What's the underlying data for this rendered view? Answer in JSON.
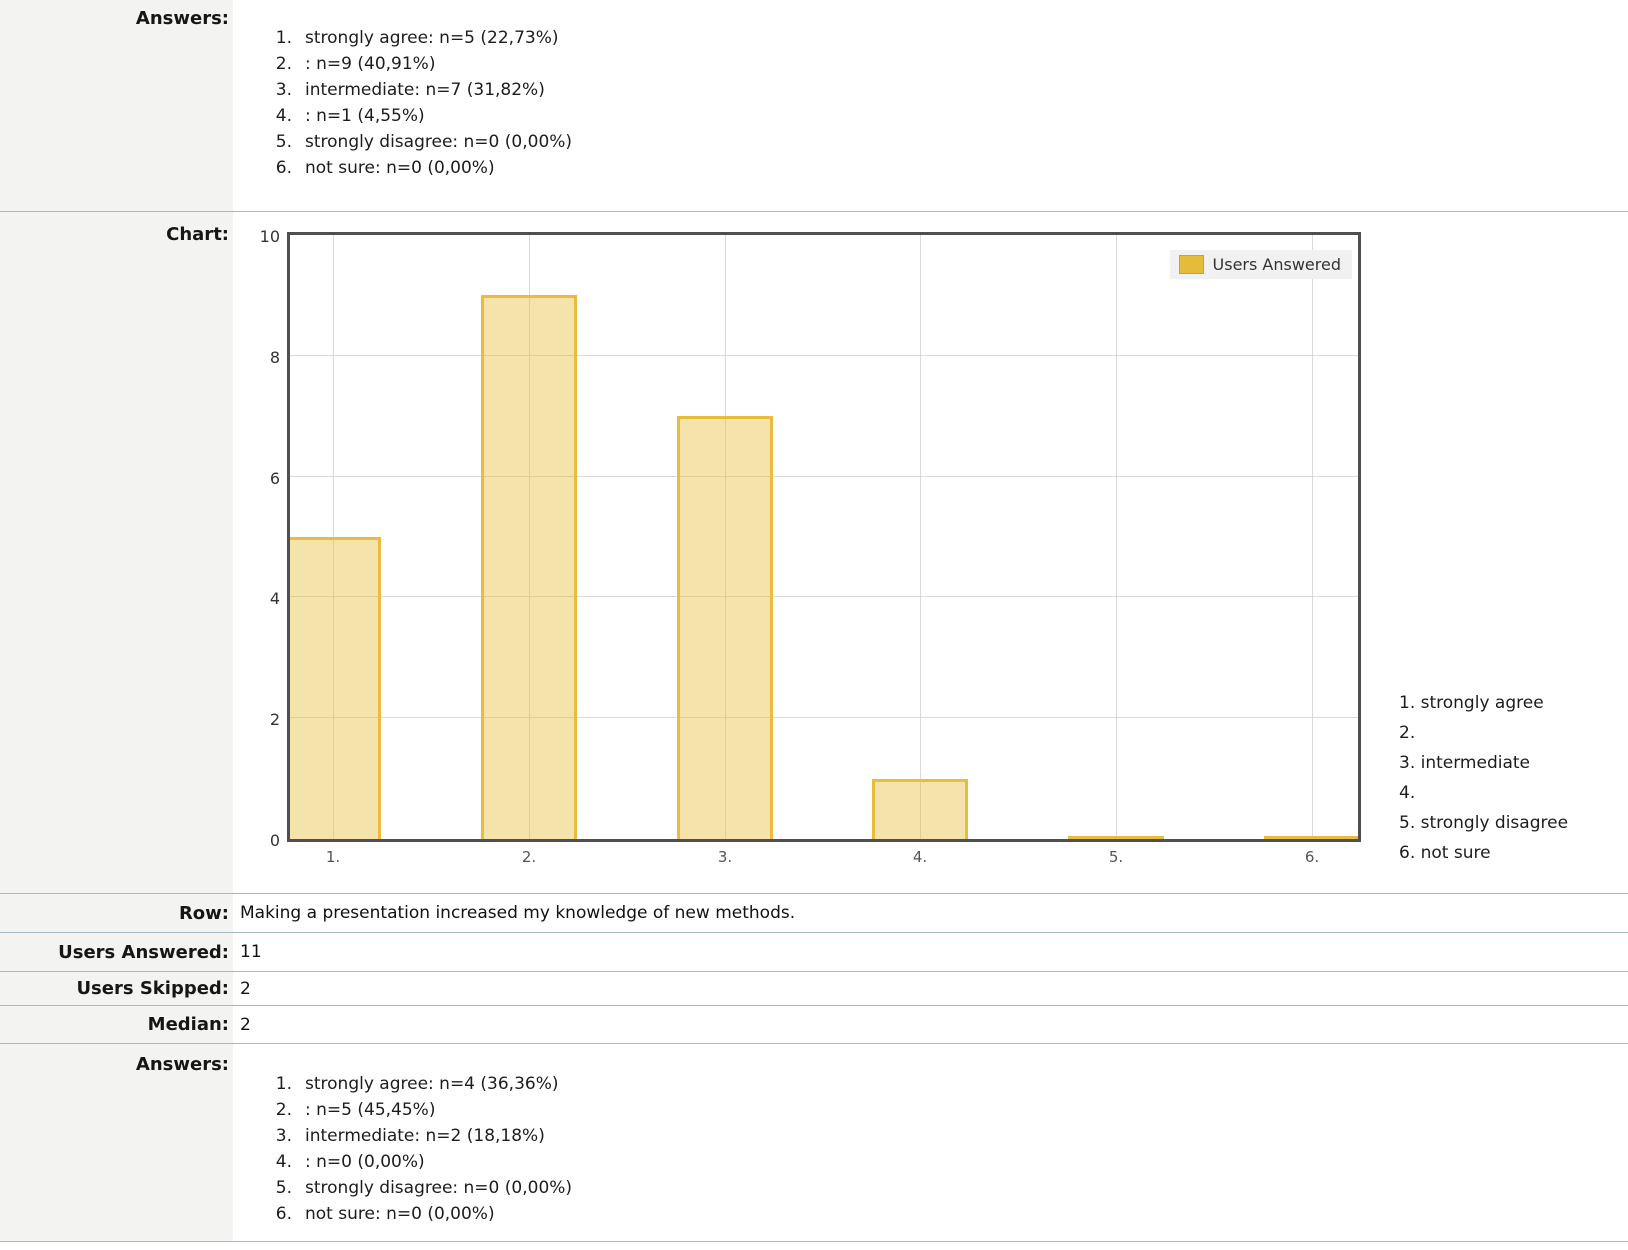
{
  "sections": {
    "answers_top": {
      "label": "Answers:",
      "items": [
        {
          "num": "1.",
          "text": "strongly agree: n=5 (22,73%)"
        },
        {
          "num": "2.",
          "text": ": n=9 (40,91%)"
        },
        {
          "num": "3.",
          "text": "intermediate: n=7 (31,82%)"
        },
        {
          "num": "4.",
          "text": ": n=1 (4,55%)"
        },
        {
          "num": "5.",
          "text": "strongly disagree: n=0 (0,00%)"
        },
        {
          "num": "6.",
          "text": "not sure: n=0 (0,00%)"
        }
      ]
    },
    "chart": {
      "label": "Chart:"
    },
    "meta_rows": [
      {
        "label": "Row:",
        "value": "Making a presentation increased my knowledge of new methods."
      },
      {
        "label": "Users Answered:",
        "value": "11"
      },
      {
        "label": "Users Skipped:",
        "value": "2"
      },
      {
        "label": "Median:",
        "value": "2"
      }
    ],
    "answers_bottom": {
      "label": "Answers:",
      "items": [
        {
          "num": "1.",
          "text": "strongly agree: n=4 (36,36%)"
        },
        {
          "num": "2.",
          "text": ": n=5 (45,45%)"
        },
        {
          "num": "3.",
          "text": "intermediate: n=2 (18,18%)"
        },
        {
          "num": "4.",
          "text": ": n=0 (0,00%)"
        },
        {
          "num": "5.",
          "text": "strongly disagree: n=0 (0,00%)"
        },
        {
          "num": "6.",
          "text": "not sure: n=0 (0,00%)"
        }
      ]
    }
  },
  "chart_data": {
    "type": "bar",
    "title": "",
    "categories": [
      "1.",
      "2.",
      "3.",
      "4.",
      "5.",
      "6."
    ],
    "series": [
      {
        "name": "Users Answered",
        "values": [
          5,
          9,
          7,
          1,
          0,
          0
        ]
      }
    ],
    "legend_label": "Users Answered",
    "legend_position": "top-right",
    "ylim": [
      0,
      10
    ],
    "yticks": [
      0,
      2,
      4,
      6,
      8,
      10
    ],
    "grid": true,
    "side_category_labels": [
      "1. strongly agree",
      "2.",
      "3. intermediate",
      "4.",
      "5. strongly disagree",
      "6. not sure"
    ],
    "colors": {
      "bar_fill": "#F5E3AC",
      "bar_border": "#E8BC3E",
      "frame": "#4F4F4F",
      "gridline": "#D9D9D9",
      "legend_bg": "#F1F1F1",
      "divider": "#A9B9C2",
      "label_column_bg": "#F3F3F2"
    }
  }
}
